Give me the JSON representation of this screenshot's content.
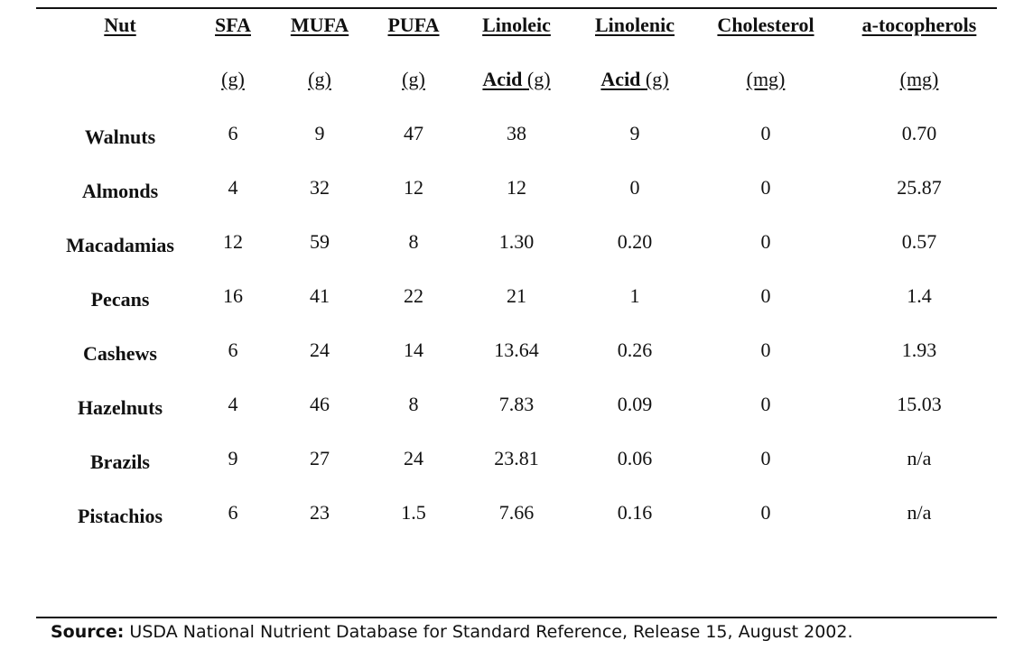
{
  "columns": [
    {
      "key": "nut",
      "header": "Nut",
      "unit_bold": "",
      "unit": ""
    },
    {
      "key": "sfa",
      "header": "SFA",
      "unit_bold": "",
      "unit": "(g)"
    },
    {
      "key": "mufa",
      "header": "MUFA",
      "unit_bold": "",
      "unit": "(g)"
    },
    {
      "key": "pufa",
      "header": "PUFA",
      "unit_bold": "",
      "unit": "(g)"
    },
    {
      "key": "linoleic",
      "header": "Linoleic",
      "unit_bold": "Acid",
      "unit": "(g)"
    },
    {
      "key": "linolenic",
      "header": "Linolenic",
      "unit_bold": "Acid",
      "unit": "(g)"
    },
    {
      "key": "cholesterol",
      "header": "Cholesterol",
      "unit_bold": "",
      "unit": "(mg)"
    },
    {
      "key": "tocopherols",
      "header": "a-tocopherols",
      "unit_bold": "",
      "unit": "(mg)"
    }
  ],
  "rows": [
    {
      "nut": "Walnuts",
      "sfa": "6",
      "mufa": "9",
      "pufa": "47",
      "linoleic": "38",
      "linolenic": "9",
      "cholesterol": "0",
      "tocopherols": "0.70"
    },
    {
      "nut": "Almonds",
      "sfa": "4",
      "mufa": "32",
      "pufa": "12",
      "linoleic": "12",
      "linolenic": "0",
      "cholesterol": "0",
      "tocopherols": "25.87"
    },
    {
      "nut": "Macadamias",
      "sfa": "12",
      "mufa": "59",
      "pufa": "8",
      "linoleic": "1.30",
      "linolenic": "0.20",
      "cholesterol": "0",
      "tocopherols": "0.57"
    },
    {
      "nut": "Pecans",
      "sfa": "16",
      "mufa": "41",
      "pufa": "22",
      "linoleic": "21",
      "linolenic": "1",
      "cholesterol": "0",
      "tocopherols": "1.4"
    },
    {
      "nut": "Cashews",
      "sfa": "6",
      "mufa": "24",
      "pufa": "14",
      "linoleic": "13.64",
      "linolenic": "0.26",
      "cholesterol": "0",
      "tocopherols": "1.93"
    },
    {
      "nut": "Hazelnuts",
      "sfa": "4",
      "mufa": "46",
      "pufa": "8",
      "linoleic": "7.83",
      "linolenic": "0.09",
      "cholesterol": "0",
      "tocopherols": "15.03"
    },
    {
      "nut": "Brazils",
      "sfa": "9",
      "mufa": "27",
      "pufa": "24",
      "linoleic": "23.81",
      "linolenic": "0.06",
      "cholesterol": "0",
      "tocopherols": "n/a"
    },
    {
      "nut": "Pistachios",
      "sfa": "6",
      "mufa": "23",
      "pufa": "1.5",
      "linoleic": "7.66",
      "linolenic": "0.16",
      "cholesterol": "0",
      "tocopherols": "n/a"
    }
  ],
  "source": {
    "label": "Source:",
    "text": " USDA National Nutrient Database for Standard Reference, Release 15, August 2002."
  }
}
